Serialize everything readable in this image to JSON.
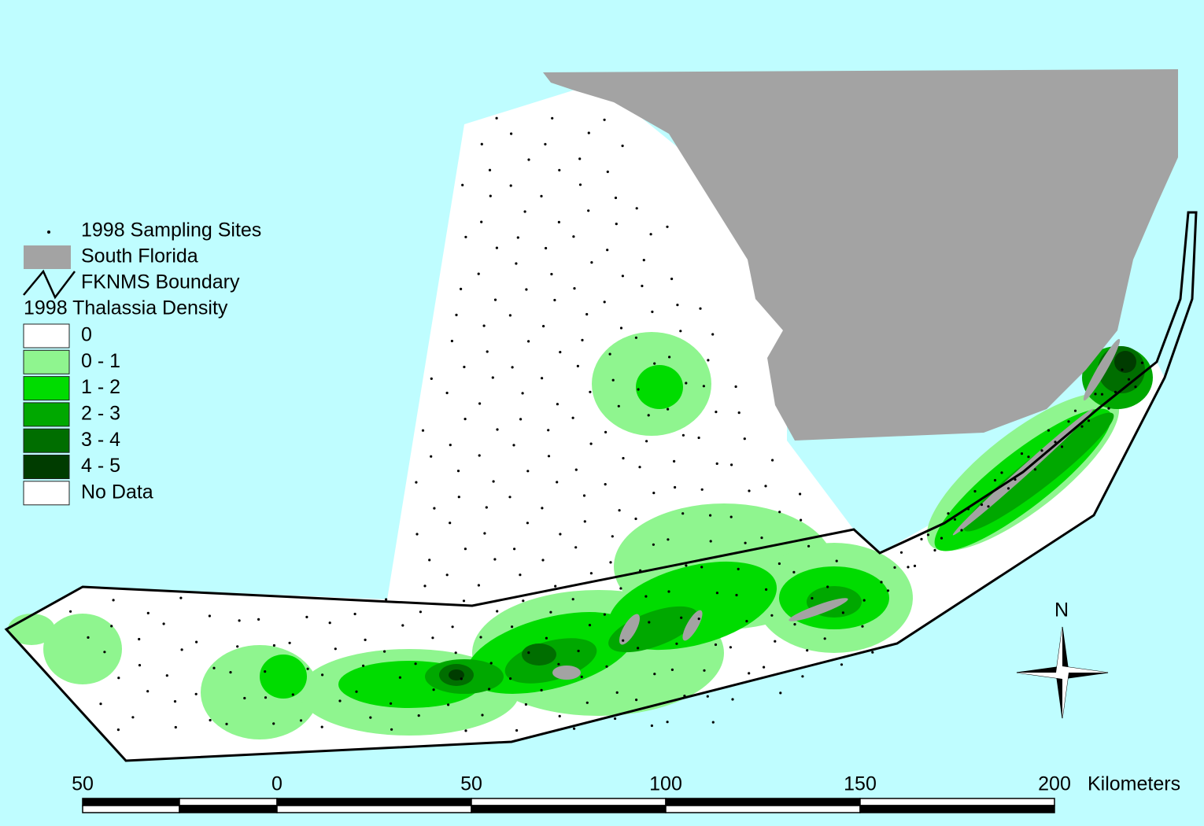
{
  "legend": {
    "sites": "1998 Sampling Sites",
    "land": "South Florida",
    "boundary": "FKNMS Boundary",
    "density_title": "1998 Thalassia Density",
    "classes": [
      {
        "label": "0",
        "color": "#ffffff"
      },
      {
        "label": "0 - 1",
        "color": "#8ff58f"
      },
      {
        "label": "1 - 2",
        "color": "#00dc00"
      },
      {
        "label": "2 - 3",
        "color": "#00a800"
      },
      {
        "label": "3 - 4",
        "color": "#006e00"
      },
      {
        "label": "4 - 5",
        "color": "#003c00"
      },
      {
        "label": "No Data",
        "color": "#ffffff"
      }
    ]
  },
  "scale_bar": {
    "labels": [
      "50",
      "0",
      "50",
      "100",
      "150",
      "200"
    ],
    "unit": "Kilometers"
  },
  "north_arrow": {
    "label": "N"
  }
}
